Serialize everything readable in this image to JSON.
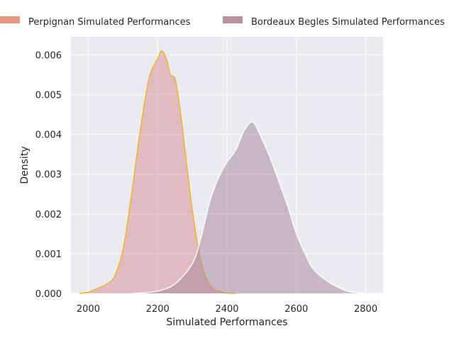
{
  "chart_data": {
    "type": "area",
    "xlabel": "Simulated Performances",
    "ylabel": "Density",
    "xlim": [
      1950,
      2850
    ],
    "ylim": [
      0,
      0.00645
    ],
    "grid": true,
    "legend_position": "top",
    "x_ticks": [
      2000,
      2200,
      2400,
      2600,
      2800
    ],
    "y_ticks": [
      0.0,
      0.001,
      0.002,
      0.003,
      0.004,
      0.005,
      0.006
    ],
    "x_tick_labels": [
      "2000",
      "2200",
      "2400",
      "2600",
      "2800"
    ],
    "y_tick_labels": [
      "0.000",
      "0.001",
      "0.002",
      "0.003",
      "0.004",
      "0.005",
      "0.006"
    ],
    "series": [
      {
        "name": "Perpignan Simulated Performances",
        "legend_color": "#e8967f",
        "fill": "#d98288",
        "fill_opacity": 0.45,
        "stroke": "#f2b40d",
        "x": [
          1975,
          2000,
          2025,
          2050,
          2075,
          2100,
          2125,
          2150,
          2175,
          2200,
          2212,
          2225,
          2237,
          2250,
          2262,
          2275,
          2300,
          2325,
          2350,
          2375,
          2400,
          2425
        ],
        "y": [
          0.0,
          3e-05,
          0.00012,
          0.00022,
          0.00042,
          0.0011,
          0.0025,
          0.0041,
          0.0054,
          0.0059,
          0.0061,
          0.0059,
          0.0055,
          0.0054,
          0.0048,
          0.0039,
          0.0021,
          0.0008,
          0.00022,
          6e-05,
          1e-05,
          0.0
        ]
      },
      {
        "name": "Bordeaux Begles Simulated Performances",
        "legend_color": "#b892a1",
        "fill": "#a6869c",
        "fill_opacity": 0.5,
        "stroke": "#ffffff",
        "x": [
          2130,
          2150,
          2200,
          2250,
          2300,
          2325,
          2350,
          2375,
          2400,
          2425,
          2450,
          2475,
          2500,
          2525,
          2550,
          2575,
          2600,
          2625,
          2650,
          2700,
          2750,
          2800
        ],
        "y": [
          0.0,
          1e-05,
          6e-05,
          0.00024,
          0.00075,
          0.0014,
          0.0023,
          0.0029,
          0.0033,
          0.0036,
          0.0041,
          0.0043,
          0.0039,
          0.0034,
          0.0028,
          0.0022,
          0.0015,
          0.001,
          0.0006,
          0.00025,
          5e-05,
          0.0
        ]
      }
    ]
  }
}
